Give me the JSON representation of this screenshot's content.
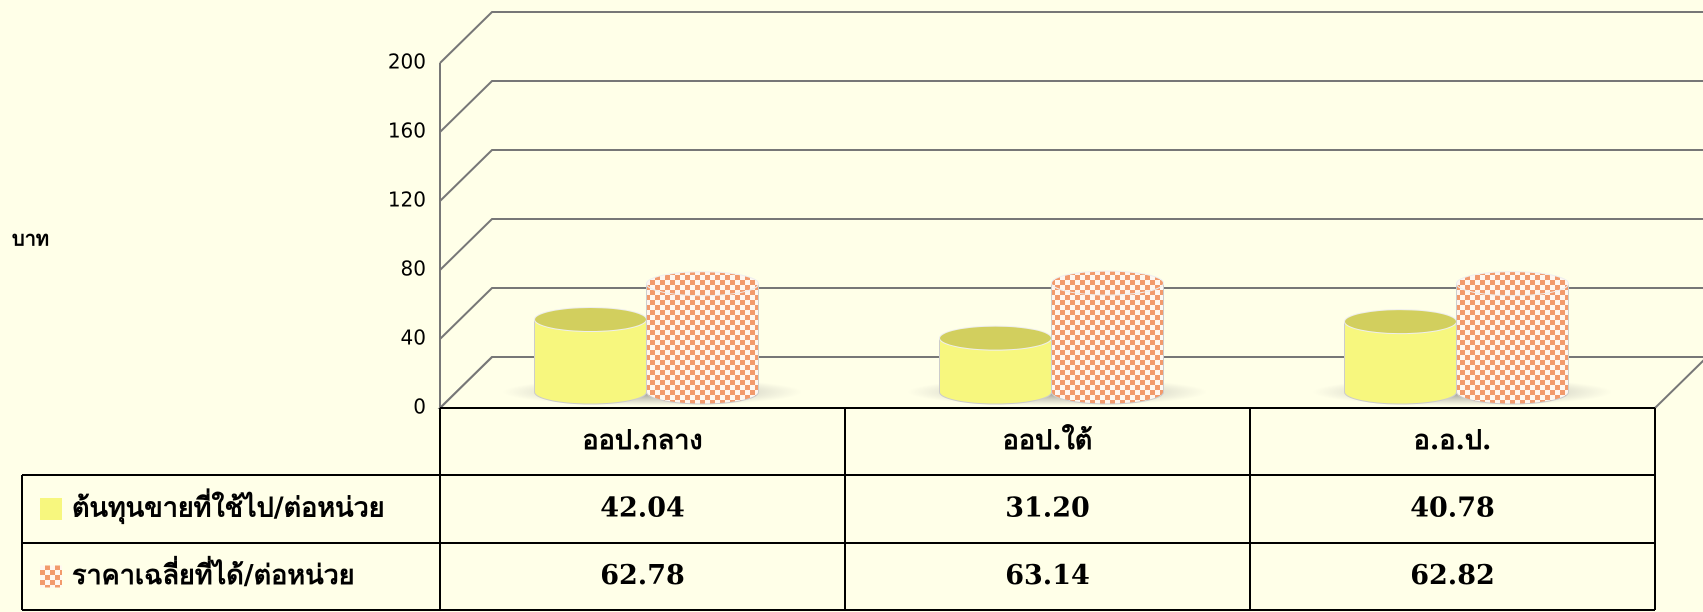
{
  "chart_data": {
    "type": "bar",
    "y_label": "บาท",
    "categories": [
      "ออป.กลาง",
      "ออป.ใต้",
      "อ.อ.ป."
    ],
    "series": [
      {
        "name": "ต้นทุนขายที่ใช้ไป/ต่อหน่วย",
        "color": "#f7f77e",
        "values": [
          42.04,
          31.2,
          40.78
        ],
        "value_labels": [
          "42.04",
          "31.20",
          "40.78"
        ]
      },
      {
        "name": "ราคาเฉลี่ยที่ได้/ต่อหน่วย",
        "color": "#f29a6c",
        "values": [
          62.78,
          63.14,
          62.82
        ],
        "value_labels": [
          "62.78",
          "63.14",
          "62.82"
        ]
      }
    ],
    "ylim": [
      0,
      200
    ],
    "yticks": [
      0,
      40,
      80,
      120,
      160,
      200
    ],
    "grid": true
  }
}
